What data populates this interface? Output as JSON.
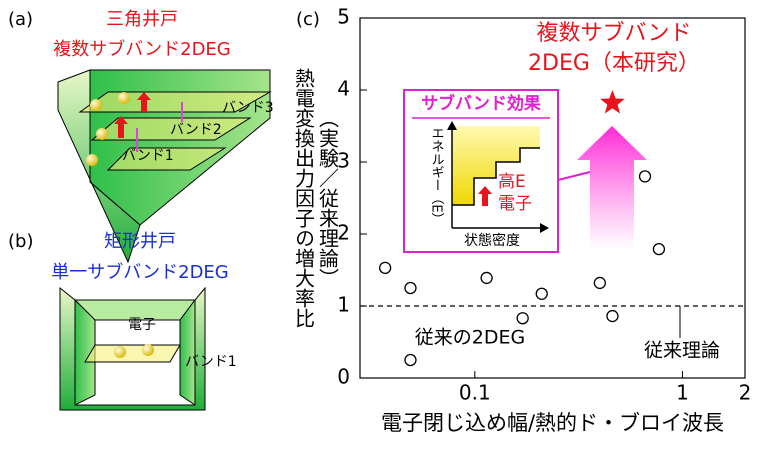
{
  "diagrams": {
    "a": {
      "label": "(a)",
      "title": "三角井戸",
      "subtitle": "複数サブバンド2DEG",
      "bands": [
        "バンド1",
        "バンド2",
        "バンド3"
      ]
    },
    "b": {
      "label": "(b)",
      "title": "矩形井戸",
      "subtitle": "単一サブバンド2DEG",
      "electron": "電子",
      "bands": [
        "バンド1"
      ]
    }
  },
  "chart_data": {
    "type": "scatter",
    "panel_label": "(c)",
    "x_label": "電子閉じ込め幅/熱的ド・ブロイ波長",
    "y_label": [
      "熱電変換出力因子の増大率比",
      "（実験／従来理論）"
    ],
    "x_log": true,
    "xlim": [
      0.028,
      2
    ],
    "ylim": [
      0,
      5
    ],
    "xticks": [
      0.1,
      1,
      2
    ],
    "yticks": [
      0,
      1,
      2,
      3,
      4,
      5
    ],
    "series": [
      {
        "color": "#ffffff",
        "marker": "circle",
        "x": [
          0.037,
          0.049,
          0.049,
          0.114,
          0.17,
          0.21,
          0.4,
          0.46,
          0.66,
          0.77
        ],
        "values": [
          1.53,
          1.25,
          0.25,
          1.39,
          0.83,
          1.17,
          1.32,
          0.86,
          2.8,
          1.79
        ]
      },
      {
        "color": "#e8141c",
        "marker": "star",
        "x": [
          0.46
        ],
        "values": [
          3.82
        ]
      }
    ],
    "reference_line": {
      "value": 1,
      "label": "従来理論"
    },
    "annotations": [
      "複数サブバンド",
      "2DEG（本研究）",
      "従来の2DEG"
    ],
    "inset": {
      "title": "サブバンド効果",
      "y_label": "エネルギー（E）",
      "x_label": "状態密度",
      "labels": [
        "高E",
        "電子"
      ]
    }
  }
}
